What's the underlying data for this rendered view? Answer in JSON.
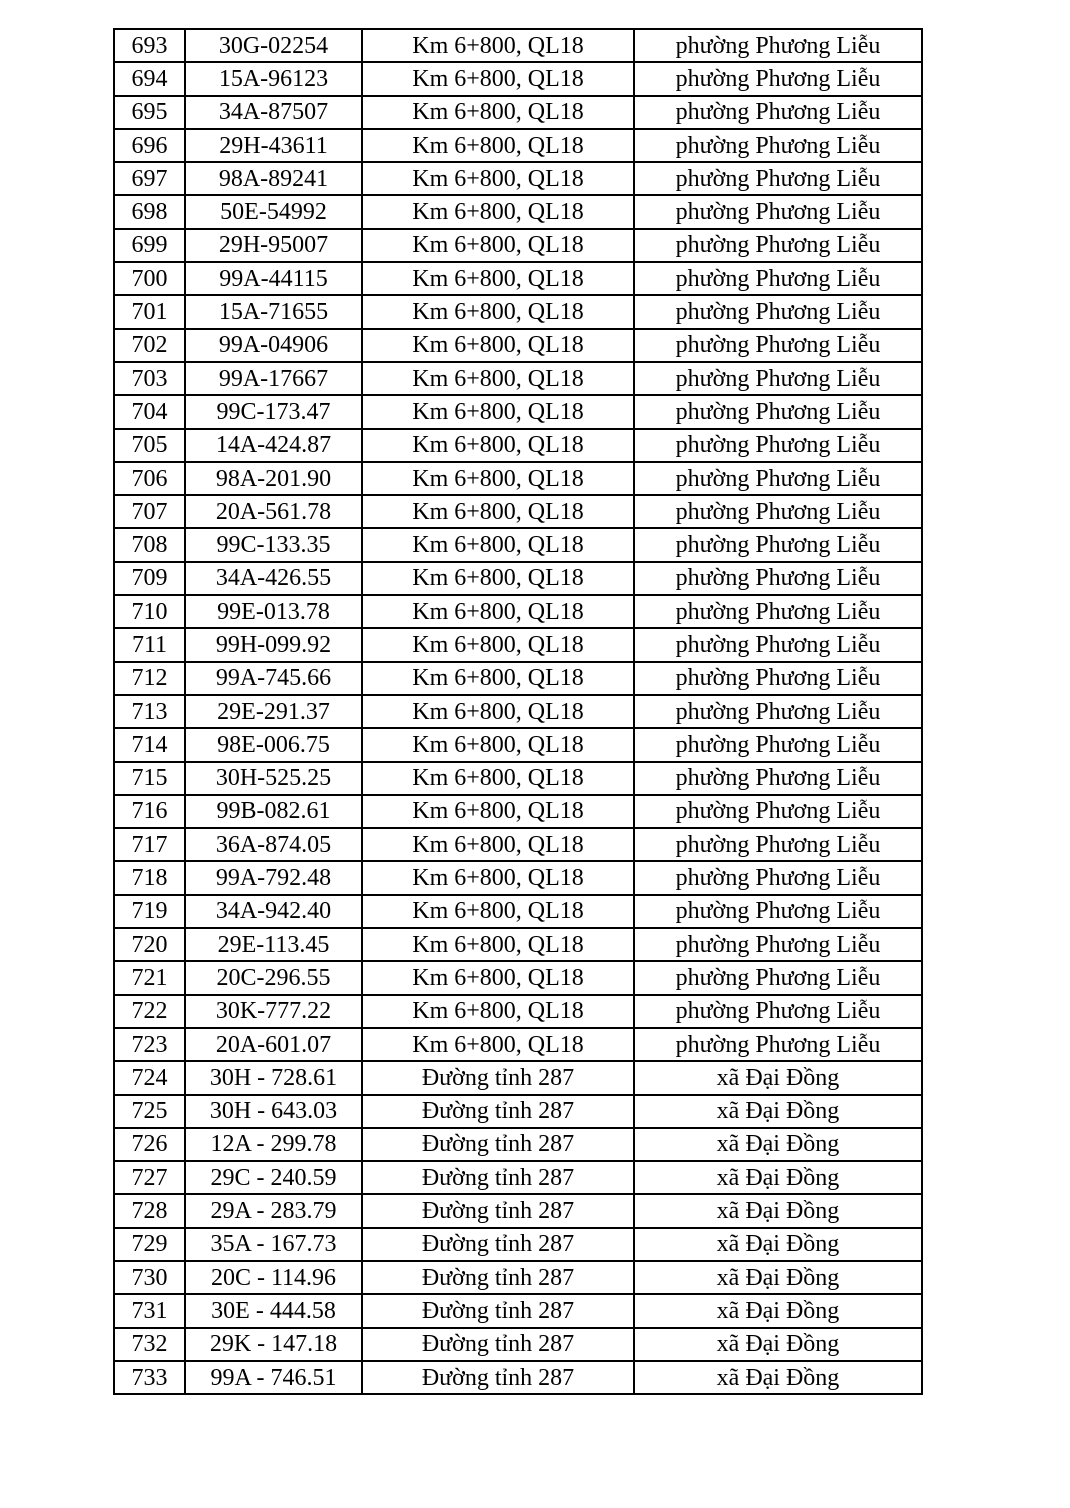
{
  "table": {
    "rows": [
      [
        "693",
        "30G-02254",
        "Km 6+800, QL18",
        "phường Phương Liễu"
      ],
      [
        "694",
        "15A-96123",
        "Km 6+800, QL18",
        "phường Phương Liễu"
      ],
      [
        "695",
        "34A-87507",
        "Km 6+800, QL18",
        "phường Phương Liễu"
      ],
      [
        "696",
        "29H-43611",
        "Km 6+800, QL18",
        "phường Phương Liễu"
      ],
      [
        "697",
        "98A-89241",
        "Km 6+800, QL18",
        "phường Phương Liễu"
      ],
      [
        "698",
        "50E-54992",
        "Km 6+800, QL18",
        "phường Phương Liễu"
      ],
      [
        "699",
        "29H-95007",
        "Km 6+800, QL18",
        "phường Phương Liễu"
      ],
      [
        "700",
        "99A-44115",
        "Km 6+800, QL18",
        "phường Phương Liễu"
      ],
      [
        "701",
        "15A-71655",
        "Km 6+800, QL18",
        "phường Phương Liễu"
      ],
      [
        "702",
        "99A-04906",
        "Km 6+800, QL18",
        "phường Phương Liễu"
      ],
      [
        "703",
        "99A-17667",
        "Km 6+800, QL18",
        "phường Phương Liễu"
      ],
      [
        "704",
        "99C-173.47",
        "Km 6+800, QL18",
        "phường Phương Liễu"
      ],
      [
        "705",
        "14A-424.87",
        "Km 6+800, QL18",
        "phường Phương Liễu"
      ],
      [
        "706",
        "98A-201.90",
        "Km 6+800, QL18",
        "phường Phương Liễu"
      ],
      [
        "707",
        "20A-561.78",
        "Km 6+800, QL18",
        "phường Phương Liễu"
      ],
      [
        "708",
        "99C-133.35",
        "Km 6+800, QL18",
        "phường Phương Liễu"
      ],
      [
        "709",
        "34A-426.55",
        "Km 6+800, QL18",
        "phường Phương Liễu"
      ],
      [
        "710",
        "99E-013.78",
        "Km 6+800, QL18",
        "phường Phương Liễu"
      ],
      [
        "711",
        "99H-099.92",
        "Km 6+800, QL18",
        "phường Phương Liễu"
      ],
      [
        "712",
        "99A-745.66",
        "Km 6+800, QL18",
        "phường Phương Liễu"
      ],
      [
        "713",
        "29E-291.37",
        "Km 6+800, QL18",
        "phường Phương Liễu"
      ],
      [
        "714",
        "98E-006.75",
        "Km 6+800, QL18",
        "phường Phương Liễu"
      ],
      [
        "715",
        "30H-525.25",
        "Km 6+800, QL18",
        "phường Phương Liễu"
      ],
      [
        "716",
        "99B-082.61",
        "Km 6+800, QL18",
        "phường Phương Liễu"
      ],
      [
        "717",
        "36A-874.05",
        "Km 6+800, QL18",
        "phường Phương Liễu"
      ],
      [
        "718",
        "99A-792.48",
        "Km 6+800, QL18",
        "phường Phương Liễu"
      ],
      [
        "719",
        "34A-942.40",
        "Km 6+800, QL18",
        "phường Phương Liễu"
      ],
      [
        "720",
        "29E-113.45",
        "Km 6+800, QL18",
        "phường Phương Liễu"
      ],
      [
        "721",
        "20C-296.55",
        "Km 6+800, QL18",
        "phường Phương Liễu"
      ],
      [
        "722",
        "30K-777.22",
        "Km 6+800, QL18",
        "phường Phương Liễu"
      ],
      [
        "723",
        "20A-601.07",
        "Km 6+800, QL18",
        "phường Phương Liễu"
      ],
      [
        "724",
        "30H - 728.61",
        "Đường tỉnh 287",
        "xã Đại Đồng"
      ],
      [
        "725",
        "30H - 643.03",
        "Đường tỉnh 287",
        "xã Đại Đồng"
      ],
      [
        "726",
        "12A - 299.78",
        "Đường tỉnh 287",
        "xã Đại Đồng"
      ],
      [
        "727",
        "29C - 240.59",
        "Đường tỉnh 287",
        "xã Đại Đồng"
      ],
      [
        "728",
        "29A - 283.79",
        "Đường tỉnh 287",
        "xã Đại Đồng"
      ],
      [
        "729",
        "35A - 167.73",
        "Đường tỉnh 287",
        "xã Đại Đồng"
      ],
      [
        "730",
        "20C - 114.96",
        "Đường tỉnh 287",
        "xã Đại Đồng"
      ],
      [
        "731",
        "30E - 444.58",
        "Đường tỉnh 287",
        "xã Đại Đồng"
      ],
      [
        "732",
        "29K - 147.18",
        "Đường tỉnh 287",
        "xã Đại Đồng"
      ],
      [
        "733",
        "99A - 746.51",
        "Đường tỉnh 287",
        "xã Đại Đồng"
      ]
    ]
  }
}
